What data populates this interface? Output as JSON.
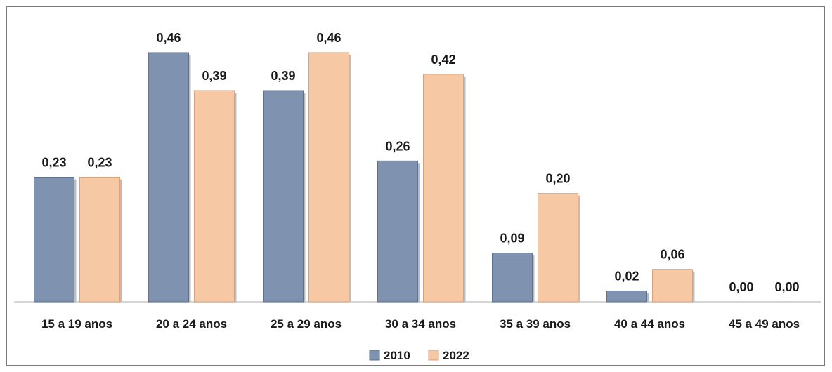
{
  "chart_data": {
    "type": "bar",
    "categories": [
      "15 a 19 anos",
      "20 a 24 anos",
      "25 a 29 anos",
      "30 a 34 anos",
      "35 a 39 anos",
      "40 a 44 anos",
      "45 a 49 anos"
    ],
    "series": [
      {
        "name": "2010",
        "values": [
          0.23,
          0.46,
          0.39,
          0.26,
          0.09,
          0.02,
          0.0
        ],
        "labels": [
          "0,23",
          "0,46",
          "0,39",
          "0,26",
          "0,09",
          "0,02",
          "0,00"
        ],
        "color": "#7f93b0"
      },
      {
        "name": "2022",
        "values": [
          0.23,
          0.39,
          0.46,
          0.42,
          0.2,
          0.06,
          0.0
        ],
        "labels": [
          "0,23",
          "0,39",
          "0,46",
          "0,42",
          "0,20",
          "0,06",
          "0,00"
        ],
        "color": "#f7c8a4"
      }
    ],
    "title": "",
    "xlabel": "",
    "ylabel": "",
    "ylim": [
      0,
      0.5
    ],
    "grid": false,
    "legend": "bottom-center"
  }
}
